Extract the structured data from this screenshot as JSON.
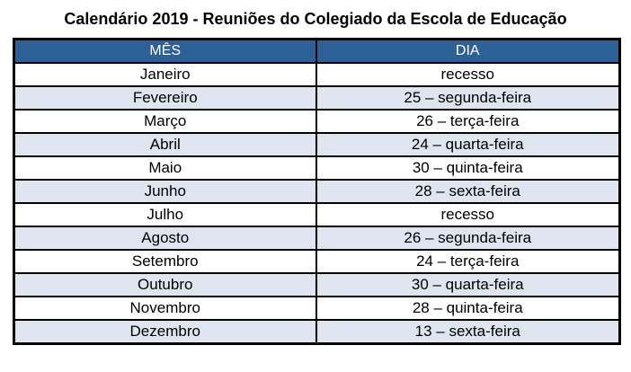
{
  "title": "Calendário 2019 - Reuniões do Colegiado da Escola de Educação",
  "table": {
    "headers": [
      "MÊS",
      "DIA"
    ],
    "rows": [
      [
        "Janeiro",
        "recesso"
      ],
      [
        "Fevereiro",
        "25 – segunda-feira"
      ],
      [
        "Março",
        "26 – terça-feira"
      ],
      [
        "Abril",
        "24 – quarta-feira"
      ],
      [
        "Maio",
        "30 – quinta-feira"
      ],
      [
        "Junho",
        "28 – sexta-feira"
      ],
      [
        "Julho",
        "recesso"
      ],
      [
        "Agosto",
        "26 – segunda-feira"
      ],
      [
        "Setembro",
        "24 – terça-feira"
      ],
      [
        "Outubro",
        "30 – quarta-feira"
      ],
      [
        "Novembro",
        "28 – quinta-feira"
      ],
      [
        "Dezembro",
        "13 – sexta-feira"
      ]
    ]
  },
  "colors": {
    "header_bg": "#2C6197",
    "header_text": "#FFFFFF",
    "row_bg": "#FFFFFF",
    "row_alt_bg": "#DEE5EF",
    "border": "#000000",
    "title_text": "#000000"
  }
}
